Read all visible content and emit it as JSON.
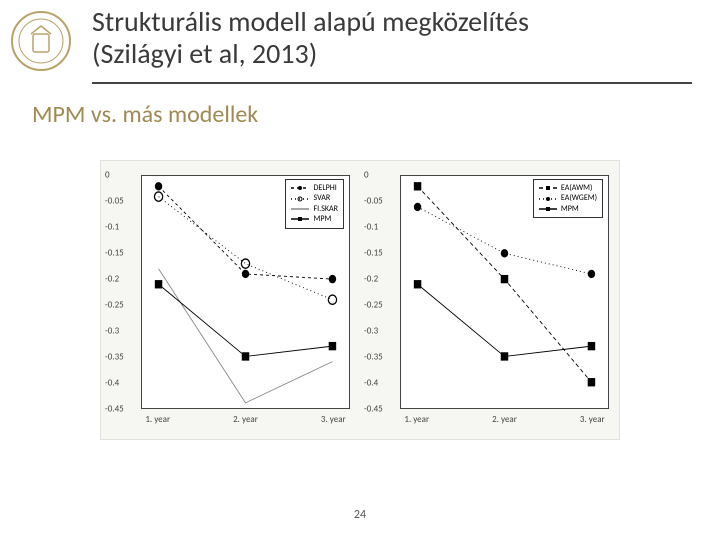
{
  "title_line1": "Strukturális modell alapú megközelítés",
  "title_line2": "(Szilágyi et al, 2013)",
  "subtitle": "MPM vs. más modellek",
  "page_number": "24",
  "bg_panel": "#f6f6f2",
  "chart": {
    "ylim": [
      -0.45,
      0.0
    ],
    "yticks": [
      0,
      -0.05,
      -0.1,
      -0.15,
      -0.2,
      -0.25,
      -0.3,
      -0.35,
      -0.4,
      -0.45
    ],
    "xlabels": [
      "1. year",
      "2. year",
      "3. year"
    ],
    "axis_color": "#444444",
    "grid": false,
    "left": {
      "legend": [
        "DELPHI",
        "SVAR",
        "FI.SKAR",
        "MPM"
      ],
      "series": [
        {
          "name": "DELPHI",
          "color": "#000000",
          "dash": "3 3",
          "marker": "dot",
          "vals": [
            -0.02,
            -0.19,
            -0.2
          ]
        },
        {
          "name": "SVAR",
          "color": "#000000",
          "dash": "1 3",
          "marker": "circle",
          "vals": [
            -0.04,
            -0.17,
            -0.24
          ]
        },
        {
          "name": "FI.SKAR",
          "color": "#888888",
          "dash": "none",
          "marker": "none",
          "vals": [
            -0.18,
            -0.44,
            -0.36
          ]
        },
        {
          "name": "MPM",
          "color": "#000000",
          "dash": "none",
          "marker": "square",
          "vals": [
            -0.21,
            -0.35,
            -0.33
          ]
        }
      ]
    },
    "right": {
      "legend": [
        "EA(AWM)",
        "EA(WGEM)",
        "MPM"
      ],
      "series": [
        {
          "name": "EA(AWM)",
          "color": "#000000",
          "dash": "4 3",
          "marker": "square",
          "vals": [
            -0.02,
            -0.2,
            -0.4
          ]
        },
        {
          "name": "EA(WGEM)",
          "color": "#000000",
          "dash": "1 3",
          "marker": "dot",
          "vals": [
            -0.06,
            -0.15,
            -0.19
          ]
        },
        {
          "name": "MPM",
          "color": "#000000",
          "dash": "none",
          "marker": "square",
          "vals": [
            -0.21,
            -0.35,
            -0.33
          ]
        }
      ]
    }
  }
}
